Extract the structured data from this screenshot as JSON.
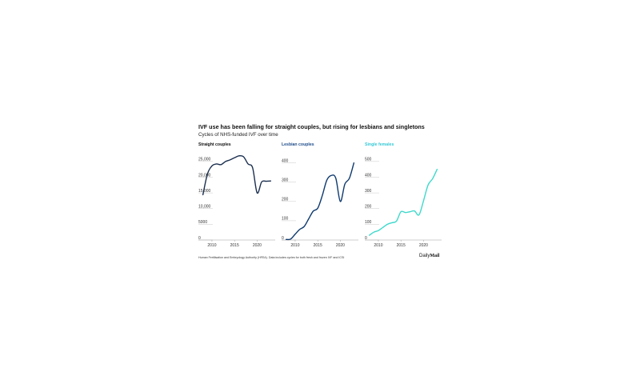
{
  "title": "IVF use has been falling for straight couples, but rising for lesbians and singletons",
  "subtitle": "Cycles of NHS-funded IVF over time",
  "source": "Human Fertilisation and Embryology Authority (HFEA). Data includes cycles for both fresh and frozen IVF and ICSI",
  "brand": {
    "part1": "Daily",
    "part2": "Mail"
  },
  "colors": {
    "straight": "#1b2f4f",
    "lesbian": "#0f3a6e",
    "single": "#3fd9cc",
    "single_title": "#38c9d6"
  },
  "chart_data": [
    {
      "type": "line",
      "title": "Straight couples",
      "xlim": [
        2007,
        2024
      ],
      "ylim": [
        0,
        27000
      ],
      "xticks": [
        2010,
        2015,
        2020
      ],
      "ytick_labels": [
        {
          "value": 0,
          "label": "0"
        },
        {
          "value": 5000,
          "label": "5000"
        },
        {
          "value": 10000,
          "label": "10,000"
        },
        {
          "value": 15000,
          "label": "15,000"
        },
        {
          "value": 20000,
          "label": "20,000"
        },
        {
          "value": 25000,
          "label": "25,000"
        }
      ],
      "x": [
        2008,
        2009,
        2010,
        2011,
        2012,
        2013,
        2014,
        2015,
        2016,
        2017,
        2018,
        2019,
        2020,
        2021,
        2022,
        2023
      ],
      "y": [
        14400,
        21000,
        23600,
        24200,
        24000,
        25000,
        25500,
        26200,
        26800,
        26500,
        24200,
        23000,
        15000,
        18500,
        18700,
        18800
      ]
    },
    {
      "type": "line",
      "title": "Lesbian couples",
      "xlim": [
        2007,
        2024
      ],
      "ylim": [
        0,
        440
      ],
      "xticks": [
        2010,
        2015,
        2020
      ],
      "ytick_labels": [
        {
          "value": 0,
          "label": "0"
        },
        {
          "value": 100,
          "label": "100"
        },
        {
          "value": 200,
          "label": "200"
        },
        {
          "value": 300,
          "label": "300"
        },
        {
          "value": 400,
          "label": "400"
        }
      ],
      "x": [
        2008,
        2009,
        2010,
        2011,
        2012,
        2013,
        2014,
        2015,
        2016,
        2017,
        2018,
        2019,
        2020,
        2021,
        2022,
        2023
      ],
      "y": [
        3,
        5,
        30,
        55,
        70,
        110,
        150,
        165,
        230,
        310,
        335,
        320,
        200,
        290,
        320,
        400
      ]
    },
    {
      "type": "line",
      "title": "Single females",
      "xlim": [
        2007,
        2024
      ],
      "ylim": [
        0,
        540
      ],
      "xticks": [
        2010,
        2015,
        2020
      ],
      "ytick_labels": [
        {
          "value": 0,
          "label": "0"
        },
        {
          "value": 100,
          "label": "100"
        },
        {
          "value": 200,
          "label": "200"
        },
        {
          "value": 300,
          "label": "300"
        },
        {
          "value": 400,
          "label": "400"
        },
        {
          "value": 500,
          "label": "500"
        }
      ],
      "x": [
        2008,
        2009,
        2010,
        2011,
        2012,
        2013,
        2014,
        2015,
        2016,
        2017,
        2018,
        2019,
        2020,
        2021,
        2022,
        2023
      ],
      "y": [
        30,
        50,
        60,
        80,
        100,
        110,
        120,
        180,
        175,
        180,
        185,
        160,
        250,
        350,
        390,
        450
      ]
    }
  ]
}
